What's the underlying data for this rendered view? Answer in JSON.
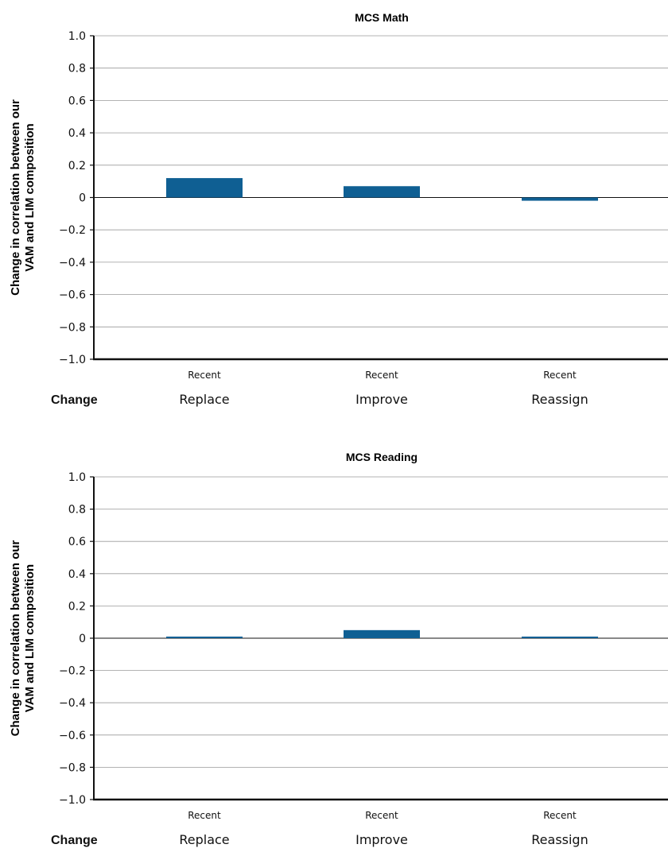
{
  "row_label": "Change",
  "colors": {
    "bar": "#0f5f93",
    "grid": "#9a9a9a",
    "axis": "#111111"
  },
  "chart_data": [
    {
      "type": "bar",
      "title": "MCS Math",
      "ylabel": "Change in correlation between our VAM and LIM composition",
      "ylabel_lines": [
        "Change in correlation between our",
        "VAM and LIM composition"
      ],
      "xlabel": "",
      "ylim": [
        -1.0,
        1.0
      ],
      "yticks": [
        1.0,
        0.8,
        0.6,
        0.4,
        0.2,
        0,
        -0.2,
        -0.4,
        -0.6,
        -0.8,
        -1.0
      ],
      "ytick_labels": [
        "1.0",
        "0.8",
        "0.6",
        "0.4",
        "0.2",
        "0",
        "−0.2",
        "−0.4",
        "−0.6",
        "−0.8",
        "−1.0"
      ],
      "categories": [
        "Replace",
        "Improve",
        "Reassign"
      ],
      "subcategories": [
        "Recent",
        "Recent",
        "Recent"
      ],
      "values": [
        0.12,
        0.07,
        -0.02
      ],
      "grid": true,
      "legend": "none"
    },
    {
      "type": "bar",
      "title": "MCS Reading",
      "ylabel": "Change in correlation between our VAM and LIM composition",
      "ylabel_lines": [
        "Change in correlation between our",
        "VAM and LIM composition"
      ],
      "xlabel": "",
      "ylim": [
        -1.0,
        1.0
      ],
      "yticks": [
        1.0,
        0.8,
        0.6,
        0.4,
        0.2,
        0,
        -0.2,
        -0.4,
        -0.6,
        -0.8,
        -1.0
      ],
      "ytick_labels": [
        "1.0",
        "0.8",
        "0.6",
        "0.4",
        "0.2",
        "0",
        "−0.2",
        "−0.4",
        "−0.6",
        "−0.8",
        "−1.0"
      ],
      "categories": [
        "Replace",
        "Improve",
        "Reassign"
      ],
      "subcategories": [
        "Recent",
        "Recent",
        "Recent"
      ],
      "values": [
        0.01,
        0.05,
        0.01
      ],
      "grid": true,
      "legend": "none"
    }
  ]
}
